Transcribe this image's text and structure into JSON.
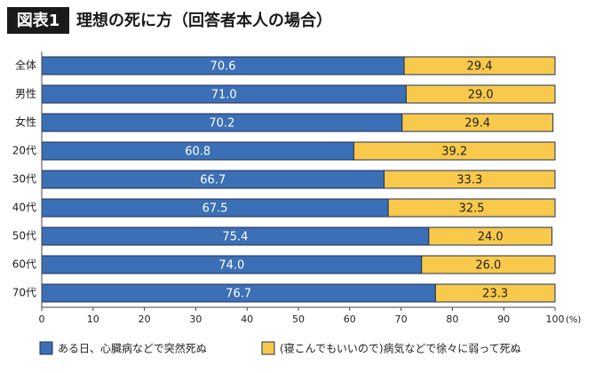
{
  "chart_data": {
    "type": "stacked-bar-horizontal",
    "figure_label": "図表1",
    "title": "理想の死に方（回答者本人の場合）",
    "categories": [
      "全体",
      "男性",
      "女性",
      "20代",
      "30代",
      "40代",
      "50代",
      "60代",
      "70代"
    ],
    "series": [
      {
        "name": "ある日、心臓病などで突然死ぬ",
        "color": "#3b6fb6",
        "values": [
          70.6,
          71.0,
          70.2,
          60.8,
          66.7,
          67.5,
          75.4,
          74.0,
          76.7
        ],
        "value_labels": [
          "70.6",
          "71.0",
          "70.2",
          "60.8",
          "66.7",
          "67.5",
          "75.4",
          "74.0",
          "76.7"
        ]
      },
      {
        "name": "(寝こんでもいいので)病気などで徐々に弱って死ぬ",
        "color": "#f8c94a",
        "values": [
          29.4,
          29.0,
          29.4,
          39.2,
          33.3,
          32.5,
          24.0,
          26.0,
          23.3
        ],
        "value_labels": [
          "29.4",
          "29.0",
          "29.4",
          "39.2",
          "33.3",
          "32.5",
          "24.0",
          "26.0",
          "23.3"
        ]
      }
    ],
    "xlim": [
      0,
      100
    ],
    "xticks": [
      0,
      10,
      20,
      30,
      40,
      50,
      60,
      70,
      80,
      90,
      100
    ],
    "x_unit": "(%)"
  }
}
